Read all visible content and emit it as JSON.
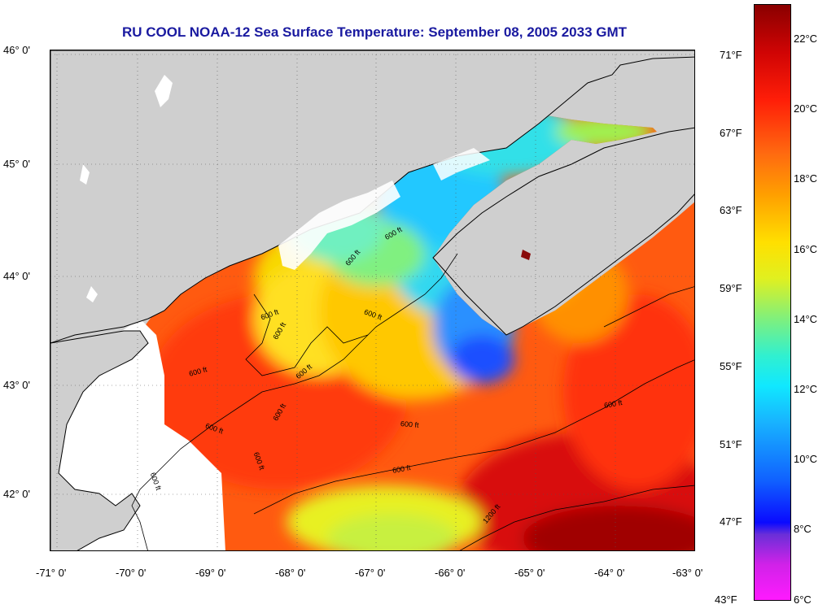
{
  "title": "RU COOL  NOAA-12  Sea Surface Temperature:  September 08, 2005 2033 GMT",
  "latitude_labels": [
    "46° 0'",
    "45° 0'",
    "44° 0'",
    "43° 0'",
    "42° 0'"
  ],
  "longitude_labels": [
    "-71° 0'",
    "-70° 0'",
    "-69° 0'",
    "-68° 0'",
    "-67° 0'",
    "-66° 0'",
    "-65° 0'",
    "-64° 0'",
    "-63° 0'"
  ],
  "colorbar": {
    "fahrenheit_labels": [
      "71°F",
      "67°F",
      "63°F",
      "59°F",
      "55°F",
      "51°F",
      "47°F",
      "43°F"
    ],
    "celsius_labels": [
      "22°C",
      "20°C",
      "18°C",
      "16°C",
      "14°C",
      "12°C",
      "10°C",
      "8°C",
      "6°C"
    ]
  },
  "contour_labels": [
    "600 ft",
    "600 ft",
    "600 ft",
    "600 ft",
    "600 ft",
    "600 ft",
    "600 ft",
    "600 ft",
    "600 ft",
    "600 ft",
    "600 ft",
    "600 ft",
    "600 ft",
    "600 ft",
    "1200 ft"
  ],
  "colors": {
    "land": "#cfcfcf",
    "title": "#1a1aa0",
    "cloud_mask": "#ffffff"
  }
}
